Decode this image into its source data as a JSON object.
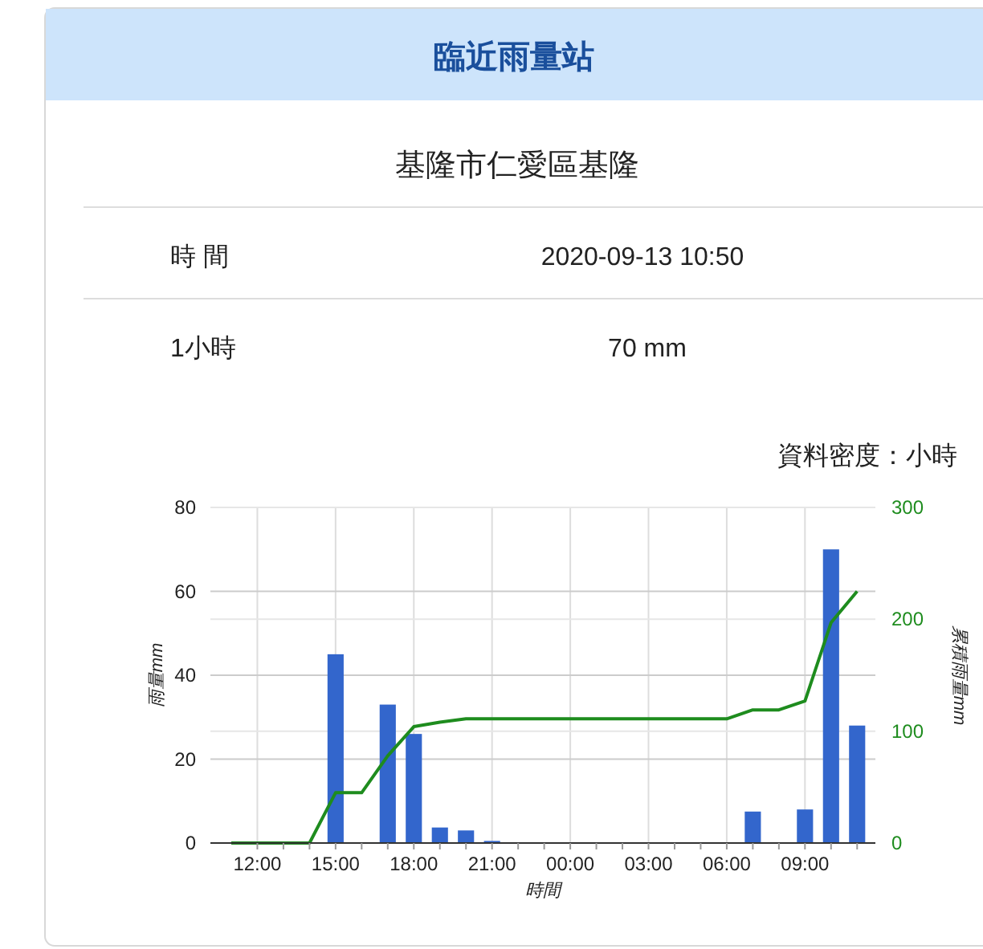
{
  "chart_data": {
    "type": "bar",
    "title": "臨近雨量站",
    "subtitle": "基隆市仁愛區基隆",
    "annotations": [
      "時 間",
      "2020-09-13 10:50",
      "1小時",
      "70 mm",
      "資料密度：小時"
    ],
    "xlabel": "時間",
    "ylabel": "雨量mm",
    "y2label": "累積雨量mm",
    "x": [
      "2020-09-12T11:00",
      "2020-09-12T12:00",
      "2020-09-12T13:00",
      "2020-09-12T14:00",
      "2020-09-12T15:00",
      "2020-09-12T16:00",
      "2020-09-12T17:00",
      "2020-09-12T18:00",
      "2020-09-12T19:00",
      "2020-09-12T20:00",
      "2020-09-12T21:00",
      "2020-09-12T22:00",
      "2020-09-12T23:00",
      "2020-09-13T00:00",
      "2020-09-13T01:00",
      "2020-09-13T02:00",
      "2020-09-13T03:00",
      "2020-09-13T04:00",
      "2020-09-13T05:00",
      "2020-09-13T06:00",
      "2020-09-13T07:00",
      "2020-09-13T08:00",
      "2020-09-13T09:00",
      "2020-09-13T10:00",
      "2020-09-13T11:00"
    ],
    "series": [
      {
        "color": "#3366cc",
        "values": [
          0,
          0,
          0,
          0,
          45,
          0,
          33,
          26,
          3.7,
          3,
          0.5,
          0,
          0,
          0,
          0,
          0,
          0,
          0,
          0,
          0,
          7.5,
          0,
          8,
          70,
          28
        ]
      },
      {
        "type": "line",
        "axis": "y2",
        "color": "#1e8c1e",
        "values": [
          0,
          0,
          0,
          0,
          45,
          45,
          78,
          104,
          108,
          111,
          111,
          111,
          111,
          111,
          111,
          111,
          111,
          111,
          111,
          111,
          119,
          119,
          127,
          197,
          225
        ]
      }
    ],
    "xlim": [
      "2020-09-12T10:12",
      "2020-09-13T11:42"
    ],
    "xticks": [
      {
        "value": "2020-09-12T12:00",
        "label": "12:00"
      },
      {
        "value": "2020-09-12T13:00",
        "label": null
      },
      {
        "value": "2020-09-12T14:00",
        "label": null
      },
      {
        "value": "2020-09-12T15:00",
        "label": "15:00"
      },
      {
        "value": "2020-09-12T16:00",
        "label": null
      },
      {
        "value": "2020-09-12T17:00",
        "label": null
      },
      {
        "value": "2020-09-12T18:00",
        "label": "18:00"
      },
      {
        "value": "2020-09-12T19:00",
        "label": null
      },
      {
        "value": "2020-09-12T20:00",
        "label": null
      },
      {
        "value": "2020-09-12T21:00",
        "label": "21:00"
      },
      {
        "value": "2020-09-12T22:00",
        "label": null
      },
      {
        "value": "2020-09-12T23:00",
        "label": null
      },
      {
        "value": "2020-09-13T00:00",
        "label": "00:00"
      },
      {
        "value": "2020-09-13T01:00",
        "label": null
      },
      {
        "value": "2020-09-13T02:00",
        "label": null
      },
      {
        "value": "2020-09-13T03:00",
        "label": "03:00"
      },
      {
        "value": "2020-09-13T04:00",
        "label": null
      },
      {
        "value": "2020-09-13T05:00",
        "label": null
      },
      {
        "value": "2020-09-13T06:00",
        "label": "06:00"
      },
      {
        "value": "2020-09-13T07:00",
        "label": null
      },
      {
        "value": "2020-09-13T08:00",
        "label": null
      },
      {
        "value": "2020-09-13T09:00",
        "label": "09:00"
      },
      {
        "value": "2020-09-13T10:00",
        "label": null
      },
      {
        "value": "2020-09-13T11:00",
        "label": null
      }
    ],
    "ylim": [
      0,
      80
    ],
    "yticks": [
      0,
      20,
      40,
      60,
      80
    ],
    "y2lim": [
      0,
      300
    ],
    "y2ticks": [
      0,
      100,
      200,
      300
    ],
    "grid": true,
    "line_style": "solid",
    "marker": "none"
  }
}
